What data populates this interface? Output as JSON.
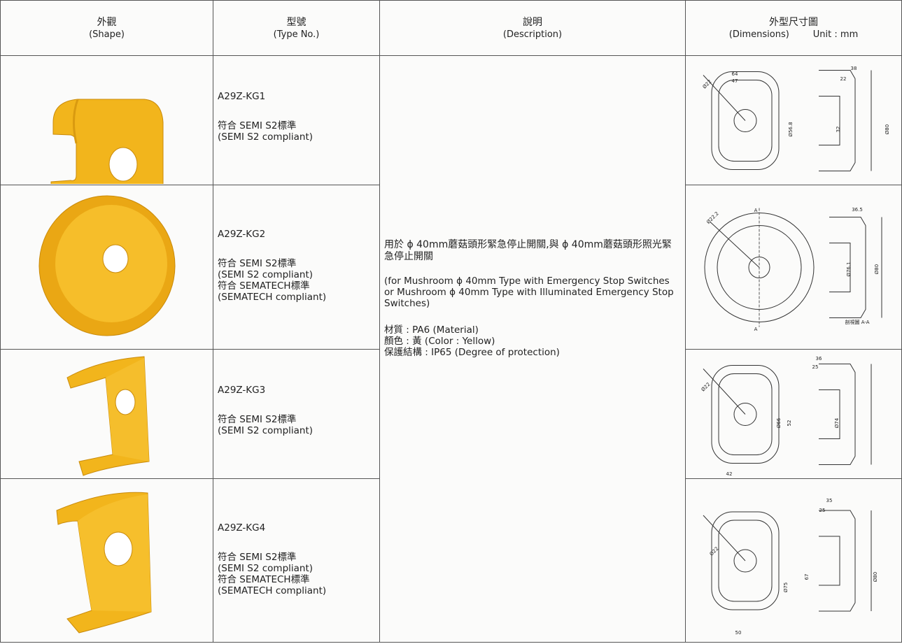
{
  "header": [
    {
      "zh": "外觀",
      "en": "(Shape)"
    },
    {
      "zh": "型號",
      "en": "(Type No.)"
    },
    {
      "zh": "說明",
      "en": "(Description)"
    },
    {
      "zh": "外型尺寸圖",
      "en": "(Dimensions)",
      "unit": "Unit : mm"
    }
  ],
  "description": {
    "zh": "用於 ϕ 40mm蘑菇頭形緊急停止開關,與 ϕ 40mm蘑菇頭形照光緊急停止開關",
    "en": "(for Mushroom ϕ 40mm Type with Emergency Stop Switches or Mushroom ϕ 40mm Type with Illuminated Emergency Stop Switches)",
    "specs": [
      "材質 : PA6 (Material)",
      "顏色 : 黃 (Color : Yellow)",
      "保護結構 : IP65 (Degree of protection)"
    ]
  },
  "rows": [
    {
      "type": "A29Z-KG1",
      "notes": [
        "符合 SEMI S2標準",
        "(SEMI S2 compliant)"
      ],
      "dims": [
        "Ø22",
        "64",
        "47",
        "Ø56.8",
        "38",
        "22",
        "32",
        "Ø80"
      ]
    },
    {
      "type": "A29Z-KG2",
      "notes": [
        "符合 SEMI S2標準",
        "(SEMI S2 compliant)",
        "符合 SEMATECH標準",
        "(SEMATECH compliant)"
      ],
      "dims": [
        "Ø22.2",
        "A",
        "A",
        "36.5",
        "Ø76.1",
        "Ø80",
        "剖視圖 A-A"
      ]
    },
    {
      "type": "A29Z-KG3",
      "notes": [
        "符合 SEMI S2標準",
        "(SEMI S2 compliant)"
      ],
      "dims": [
        "Ø22",
        "Ø66",
        "42",
        "36",
        "25",
        "52",
        "Ø74"
      ]
    },
    {
      "type": "A29Z-KG4",
      "notes": [
        "符合 SEMI S2標準",
        "(SEMI S2 compliant)",
        "符合 SEMATECH標準",
        "(SEMATECH compliant)"
      ],
      "dims": [
        "Ø22",
        "Ø75",
        "50",
        "35",
        "25",
        "67",
        "Ø80"
      ]
    }
  ]
}
